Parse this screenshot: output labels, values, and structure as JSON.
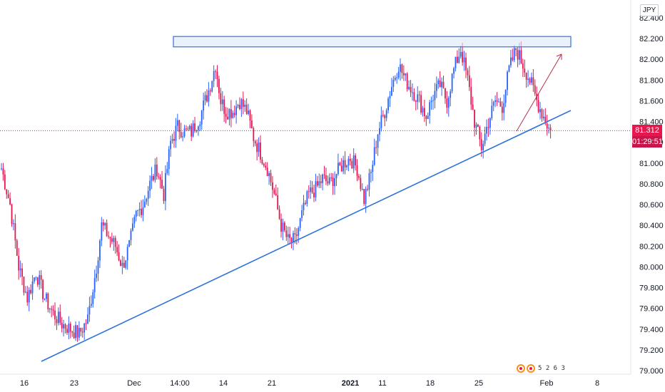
{
  "currency": "JPY",
  "price_tag": {
    "value": "81.312",
    "timer": "01:29:51"
  },
  "watermark": "5 2 6 3",
  "colors": {
    "up": "#2962ff",
    "down": "#e4174f",
    "line": "#2f73d9",
    "resistance_fill": "#dbe8fb",
    "resistance_stroke": "#2f73d9",
    "arrow": "#b8324a",
    "price_line": "#e4174f"
  },
  "chart_data": {
    "type": "candlestick",
    "symbol_currency": "JPY",
    "y_ticks": [
      "79.000",
      "79.200",
      "79.400",
      "79.600",
      "79.800",
      "80.000",
      "80.200",
      "80.400",
      "80.600",
      "80.800",
      "81.000",
      "81.200",
      "81.400",
      "81.600",
      "81.800",
      "82.000",
      "82.200",
      "82.400"
    ],
    "x_ticks": [
      {
        "label": "16",
        "bold": false
      },
      {
        "label": "23",
        "bold": false
      },
      {
        "label": "Dec",
        "bold": false
      },
      {
        "label": "14:00",
        "bold": false
      },
      {
        "label": "14",
        "bold": false
      },
      {
        "label": "21",
        "bold": false
      },
      {
        "label": "2021",
        "bold": true
      },
      {
        "label": "11",
        "bold": false
      },
      {
        "label": "18",
        "bold": false
      },
      {
        "label": "25",
        "bold": false
      },
      {
        "label": "Feb",
        "bold": false
      },
      {
        "label": "8",
        "bold": false
      }
    ],
    "ylim": [
      79.0,
      82.4
    ],
    "current_price": 81.312,
    "resistance_zone": [
      82.12,
      82.22
    ],
    "waypoints": [
      [
        0,
        80.95
      ],
      [
        5,
        80.6
      ],
      [
        10,
        80.0
      ],
      [
        15,
        79.7
      ],
      [
        20,
        79.95
      ],
      [
        25,
        79.7
      ],
      [
        30,
        79.55
      ],
      [
        35,
        79.45
      ],
      [
        40,
        79.4
      ],
      [
        45,
        79.35
      ],
      [
        50,
        79.5
      ],
      [
        55,
        80.0
      ],
      [
        58,
        80.4
      ],
      [
        62,
        80.3
      ],
      [
        66,
        80.2
      ],
      [
        70,
        80.0
      ],
      [
        74,
        80.2
      ],
      [
        78,
        80.5
      ],
      [
        82,
        80.6
      ],
      [
        86,
        80.8
      ],
      [
        90,
        80.95
      ],
      [
        94,
        80.7
      ],
      [
        98,
        81.2
      ],
      [
        102,
        81.35
      ],
      [
        106,
        81.3
      ],
      [
        110,
        81.3
      ],
      [
        115,
        81.45
      ],
      [
        120,
        81.7
      ],
      [
        124,
        81.95
      ],
      [
        127,
        81.6
      ],
      [
        130,
        81.5
      ],
      [
        134,
        81.5
      ],
      [
        138,
        81.6
      ],
      [
        142,
        81.5
      ],
      [
        146,
        81.25
      ],
      [
        150,
        81.1
      ],
      [
        154,
        80.95
      ],
      [
        158,
        80.7
      ],
      [
        162,
        80.4
      ],
      [
        166,
        80.25
      ],
      [
        170,
        80.25
      ],
      [
        174,
        80.5
      ],
      [
        178,
        80.7
      ],
      [
        182,
        80.75
      ],
      [
        186,
        80.85
      ],
      [
        190,
        80.8
      ],
      [
        194,
        80.9
      ],
      [
        198,
        81.0
      ],
      [
        202,
        81.05
      ],
      [
        206,
        80.95
      ],
      [
        210,
        80.65
      ],
      [
        214,
        80.9
      ],
      [
        218,
        81.3
      ],
      [
        222,
        81.5
      ],
      [
        226,
        81.75
      ],
      [
        230,
        81.95
      ],
      [
        234,
        81.8
      ],
      [
        238,
        81.7
      ],
      [
        242,
        81.6
      ],
      [
        246,
        81.45
      ],
      [
        250,
        81.65
      ],
      [
        254,
        81.75
      ],
      [
        258,
        81.6
      ],
      [
        262,
        81.9
      ],
      [
        266,
        82.1
      ],
      [
        270,
        81.8
      ],
      [
        274,
        81.4
      ],
      [
        278,
        81.15
      ],
      [
        282,
        81.4
      ],
      [
        286,
        81.6
      ],
      [
        290,
        81.55
      ],
      [
        294,
        81.9
      ],
      [
        298,
        82.1
      ],
      [
        302,
        81.95
      ],
      [
        306,
        81.8
      ],
      [
        310,
        81.6
      ],
      [
        314,
        81.45
      ],
      [
        318,
        81.3
      ]
    ]
  }
}
